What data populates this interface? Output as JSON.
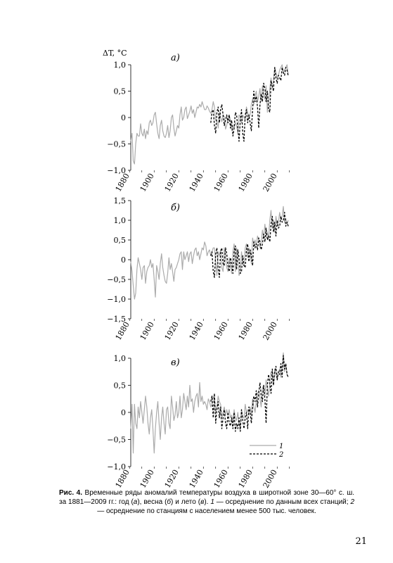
{
  "page_number": "21",
  "caption": {
    "label": "Рис. 4.",
    "text_1": " Временные ряды аномалий температуры воздуха в широтной зоне 30—60° с. ш. за 1881—2009 гг.: год (",
    "a": "а",
    "text_2": "), весна (",
    "b": "б",
    "text_3": ") и лето (",
    "c": "в",
    "text_4": "). ",
    "num1": "1",
    "text_5": " — осреднение по данным всех станций; ",
    "num2": "2",
    "text_6": " — осреднение по станциям с населением менее 500 тыс. человек."
  },
  "legend": {
    "line1": "1",
    "line2": "2"
  },
  "colors": {
    "series1": "#ababab",
    "series2": "#000000",
    "axis": "#000000"
  },
  "chart_data": [
    {
      "type": "line",
      "panel_label": "а)",
      "ylabel": "ΔT, °C",
      "xlim": [
        1881,
        2009
      ],
      "ylim": [
        -1.0,
        1.0
      ],
      "yticks": [
        "−1,0",
        "−0,5",
        "0",
        "0,5",
        "1,0"
      ],
      "ytick_values": [
        -1.0,
        -0.5,
        0,
        0.5,
        1.0
      ],
      "xticks": [
        "1880",
        "1900",
        "1920",
        "1940",
        "1960",
        "1980",
        "2000"
      ],
      "xtick_values": [
        1880,
        1900,
        1920,
        1940,
        1960,
        1980,
        2000
      ],
      "series": [
        {
          "name": "1",
          "style": "solid-gray",
          "x_start": 1881,
          "values": [
            -0.45,
            -0.3,
            -0.82,
            -0.88,
            -0.5,
            -0.3,
            -0.35,
            -0.35,
            -0.12,
            -0.3,
            -0.35,
            -0.22,
            -0.4,
            -0.25,
            -0.32,
            -0.1,
            -0.05,
            -0.15,
            -0.1,
            0.05,
            0.1,
            -0.12,
            -0.3,
            -0.4,
            -0.15,
            -0.05,
            -0.25,
            -0.35,
            -0.38,
            -0.3,
            -0.15,
            -0.38,
            -0.25,
            0.0,
            0.05,
            -0.2,
            -0.35,
            -0.25,
            -0.15,
            -0.2,
            0.05,
            0.2,
            -0.05,
            0.0,
            0.15,
            0.2,
            -0.02,
            0.05,
            0.12,
            0.22,
            0.08,
            0.15,
            0.0,
            0.1,
            0.2,
            0.18,
            0.25,
            0.2,
            0.3,
            0.22,
            0.15,
            0.15,
            0.22,
            0.18,
            0.12,
            0.08,
            0.15,
            0.3,
            0.2,
            -0.05,
            -0.05,
            -0.2,
            0.1,
            0.0,
            -0.08,
            0.05,
            0.02,
            -0.22,
            -0.15,
            0.0,
            0.05,
            -0.05,
            -0.25,
            -0.15,
            -0.2,
            -0.1,
            -0.15,
            -0.3,
            0.05,
            0.02,
            -0.1,
            0.05,
            0.0,
            -0.05,
            0.2,
            0.1,
            0.0,
            0.05,
            0.25,
            0.35,
            0.25,
            0.4,
            0.5,
            0.3,
            0.4,
            0.55,
            0.3,
            0.6,
            0.45,
            0.35,
            0.6,
            0.1,
            0.3,
            0.55,
            0.75,
            0.55,
            0.7,
            0.95,
            0.85,
            0.75,
            0.8,
            0.9,
            0.95,
            1.0,
            0.85,
            0.9,
            0.95,
            1.0,
            0.8
          ]
        },
        {
          "name": "2",
          "style": "dashed-black",
          "x_start": 1946,
          "values": [
            -0.1,
            0.1,
            0.15,
            -0.15,
            -0.3,
            0.1,
            0.2,
            -0.1,
            0.15,
            0.25,
            0.05,
            -0.15,
            -0.05,
            0.05,
            -0.1,
            0.05,
            -0.2,
            -0.05,
            -0.35,
            -0.2,
            0.1,
            0.05,
            -0.2,
            -0.45,
            -0.05,
            0.15,
            -0.3,
            -0.45,
            0.05,
            0.15,
            -0.1,
            0.05,
            -0.1,
            -0.25,
            0.15,
            0.5,
            0.3,
            0.4,
            0.2,
            -0.2,
            0.25,
            0.45,
            0.3,
            0.65,
            0.55,
            0.3,
            0.5,
            0.15,
            0.1,
            0.7,
            0.6,
            0.5,
            0.95,
            0.75,
            0.65,
            0.8,
            0.75,
            0.7,
            0.95,
            0.85,
            0.8,
            0.95,
            0.9,
            0.78
          ]
        }
      ]
    },
    {
      "type": "line",
      "panel_label": "б)",
      "ylabel": "",
      "xlim": [
        1881,
        2009
      ],
      "ylim": [
        -1.5,
        1.5
      ],
      "yticks": [
        "−1,5",
        "−1,0",
        "−0,5",
        "0",
        "0,5",
        "1,0",
        "1,5"
      ],
      "ytick_values": [
        -1.5,
        -1.0,
        -0.5,
        0,
        0.5,
        1.0,
        1.5
      ],
      "xticks": [
        "1880",
        "1900",
        "1920",
        "1940",
        "1960",
        "1980",
        "2000"
      ],
      "xtick_values": [
        1880,
        1900,
        1920,
        1940,
        1960,
        1980,
        2000
      ],
      "series": [
        {
          "name": "1",
          "style": "solid-gray",
          "x_start": 1881,
          "values": [
            -0.05,
            -0.3,
            -0.65,
            -1.0,
            -0.85,
            -0.25,
            0.05,
            -0.1,
            -0.25,
            -0.5,
            -0.2,
            -0.15,
            -0.6,
            -0.3,
            -0.2,
            -0.15,
            0.0,
            -0.2,
            -0.1,
            -0.5,
            -0.95,
            -0.15,
            -0.3,
            -0.5,
            -0.1,
            0.15,
            -0.2,
            -0.4,
            -0.55,
            -0.6,
            -0.35,
            0.05,
            -0.25,
            -0.1,
            -0.3,
            -0.55,
            -0.25,
            -0.2,
            -0.1,
            0.0,
            0.15,
            0.2,
            -0.25,
            0.2,
            0.0,
            0.1,
            0.2,
            -0.05,
            0.15,
            0.2,
            -0.1,
            0.1,
            0.25,
            0.3,
            0.1,
            0.2,
            0.0,
            0.15,
            0.3,
            0.25,
            0.45,
            0.35,
            0.1,
            0.2,
            0.25,
            0.1,
            0.2,
            0.3,
            0.3,
            -0.05,
            -0.4,
            0.2,
            0.1,
            0.25,
            -0.2,
            -0.3,
            0.3,
            0.1,
            -0.2,
            -0.3,
            0.05,
            -0.15,
            -0.35,
            0.2,
            0.4,
            -0.3,
            0.3,
            0.1,
            -0.4,
            -0.3,
            0.2,
            -0.1,
            -0.15,
            0.3,
            0.4,
            0.05,
            0.3,
            0.15,
            -0.1,
            0.55,
            0.4,
            0.5,
            0.35,
            0.6,
            0.5,
            0.3,
            0.45,
            0.75,
            0.55,
            0.9,
            0.6,
            0.7,
            0.55,
            1.0,
            1.25,
            0.8,
            1.0,
            0.7,
            1.1,
            0.9,
            0.95,
            1.2,
            1.0,
            1.1,
            1.35,
            0.95,
            1.05,
            0.9,
            1.0
          ]
        },
        {
          "name": "2",
          "style": "dashed-black",
          "x_start": 1946,
          "values": [
            0.1,
            0.2,
            -0.3,
            -0.45,
            0.15,
            0.3,
            -0.2,
            -0.45,
            0.2,
            0.3,
            -0.1,
            -0.15,
            0.3,
            0.15,
            -0.15,
            -0.3,
            0.05,
            -0.1,
            -0.35,
            0.2,
            0.35,
            -0.25,
            0.25,
            0.05,
            -0.35,
            -0.3,
            0.1,
            -0.15,
            -0.2,
            0.25,
            0.4,
            -0.05,
            0.25,
            0.1,
            -0.15,
            0.45,
            0.3,
            0.4,
            0.25,
            0.55,
            0.45,
            0.25,
            0.4,
            0.65,
            0.45,
            0.8,
            0.5,
            0.6,
            0.45,
            0.9,
            1.1,
            0.7,
            0.95,
            0.6,
            1.0,
            0.8,
            0.85,
            1.1,
            0.95,
            1.0,
            1.2,
            0.85,
            0.95,
            0.85
          ]
        }
      ]
    },
    {
      "type": "line",
      "panel_label": "в)",
      "ylabel": "",
      "xlim": [
        1881,
        2009
      ],
      "ylim": [
        -1.0,
        1.0
      ],
      "yticks": [
        "−1,0",
        "−0,5",
        "0",
        "0,5",
        "1,0"
      ],
      "ytick_values": [
        -1.0,
        -0.5,
        0,
        0.5,
        1.0
      ],
      "xticks": [
        "1880",
        "1900",
        "1920",
        "1940",
        "1960",
        "1980",
        "2000"
      ],
      "xtick_values": [
        1880,
        1900,
        1920,
        1940,
        1960,
        1980,
        2000
      ],
      "series": [
        {
          "name": "1",
          "style": "solid-gray",
          "x_start": 1881,
          "values": [
            -0.3,
            0.15,
            -0.75,
            0.15,
            -0.2,
            -0.3,
            0.1,
            -0.1,
            0.2,
            0.0,
            -0.2,
            0.05,
            0.3,
            0.1,
            -0.2,
            -0.4,
            -0.1,
            0.05,
            -0.3,
            -0.75,
            -0.3,
            0.0,
            0.2,
            -0.2,
            -0.5,
            -0.1,
            0.1,
            -0.2,
            -0.4,
            0.05,
            0.1,
            -0.2,
            -0.3,
            0.3,
            0.1,
            -0.15,
            -0.05,
            0.2,
            -0.1,
            0.0,
            0.3,
            -0.1,
            0.05,
            0.35,
            0.2,
            0.05,
            0.3,
            0.1,
            0.5,
            0.2,
            0.25,
            0.0,
            0.2,
            0.3,
            0.35,
            0.1,
            0.55,
            0.2,
            0.3,
            0.15,
            0.2,
            0.15,
            0.05,
            0.25,
            0.2,
            0.1,
            0.15,
            0.3,
            0.25,
            0.0,
            0.1,
            0.3,
            0.2,
            0.15,
            -0.1,
            0.0,
            0.1,
            -0.05,
            0.05,
            -0.05,
            0.05,
            -0.1,
            -0.05,
            -0.2,
            0.05,
            -0.1,
            -0.15,
            0.0,
            -0.2,
            -0.3,
            0.05,
            -0.1,
            -0.1,
            0.15,
            0.0,
            0.05,
            -0.05,
            0.1,
            -0.05,
            0.25,
            0.1,
            0.0,
            0.2,
            0.35,
            0.4,
            0.25,
            0.1,
            0.45,
            0.5,
            0.3,
            0.6,
            0.45,
            0.3,
            0.55,
            0.75,
            0.65,
            0.5,
            0.8,
            0.7,
            0.6,
            0.75,
            0.8,
            0.65,
            0.85,
            1.1,
            0.75,
            0.9,
            0.7,
            0.65
          ]
        },
        {
          "name": "2",
          "style": "dashed-black",
          "x_start": 1946,
          "values": [
            0.2,
            0.3,
            -0.1,
            0.35,
            -0.2,
            0.05,
            0.2,
            -0.1,
            0.1,
            -0.3,
            -0.1,
            0.05,
            -0.2,
            -0.3,
            0.0,
            -0.2,
            -0.25,
            -0.1,
            -0.3,
            0.0,
            -0.35,
            -0.2,
            -0.3,
            -0.1,
            -0.35,
            0.05,
            -0.15,
            -0.3,
            -0.1,
            0.0,
            -0.3,
            0.1,
            0.0,
            -0.2,
            0.1,
            0.3,
            0.2,
            0.4,
            0.1,
            0.35,
            0.55,
            0.3,
            0.2,
            0.5,
            0.25,
            -0.2,
            0.5,
            0.7,
            0.55,
            0.35,
            0.8,
            0.5,
            0.75,
            0.85,
            0.6,
            0.75,
            0.7,
            0.9,
            0.65,
            1.05,
            0.8,
            0.9,
            0.7,
            0.65
          ]
        }
      ]
    }
  ]
}
